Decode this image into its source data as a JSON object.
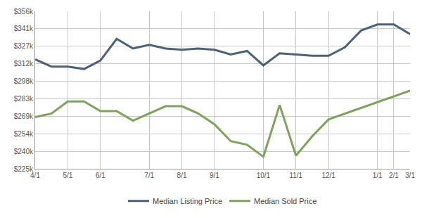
{
  "chart_data": {
    "type": "line",
    "categories": [
      "4/1",
      null,
      "5/1",
      null,
      "6/1",
      null,
      null,
      "7/1",
      null,
      "8/1",
      null,
      "9/1",
      null,
      null,
      "10/1",
      null,
      "11/1",
      null,
      "12/1",
      null,
      null,
      "1/1",
      "2/1",
      "3/1"
    ],
    "series": [
      {
        "name": "Median Listing Price",
        "color": "#4b6178",
        "values": [
          316000,
          310000,
          310000,
          308000,
          315000,
          333000,
          325000,
          328000,
          325000,
          324000,
          325000,
          324000,
          320000,
          323000,
          311000,
          321000,
          320000,
          319000,
          319000,
          326000,
          340000,
          345000,
          345000,
          337000
        ]
      },
      {
        "name": "Median Sold Price",
        "color": "#7ba35b",
        "values": [
          268000,
          271000,
          281000,
          281000,
          273000,
          273000,
          265000,
          271000,
          277000,
          277000,
          271000,
          262000,
          248000,
          245000,
          235000,
          278000,
          236000,
          252000,
          266000,
          null,
          null,
          null,
          null,
          290000
        ]
      }
    ],
    "ylim": [
      225000,
      356000
    ],
    "yticks": [
      {
        "value": 225000,
        "label": "$225k"
      },
      {
        "value": 239556,
        "label": "$240k"
      },
      {
        "value": 254111,
        "label": "$254k"
      },
      {
        "value": 268667,
        "label": "$269k"
      },
      {
        "value": 283222,
        "label": "$283k"
      },
      {
        "value": 297778,
        "label": "$298k"
      },
      {
        "value": 312333,
        "label": "$312k"
      },
      {
        "value": 326889,
        "label": "$327k"
      },
      {
        "value": 341444,
        "label": "$341k"
      },
      {
        "value": 356000,
        "label": "$356k"
      }
    ],
    "grid": true,
    "legend": "bottom"
  }
}
